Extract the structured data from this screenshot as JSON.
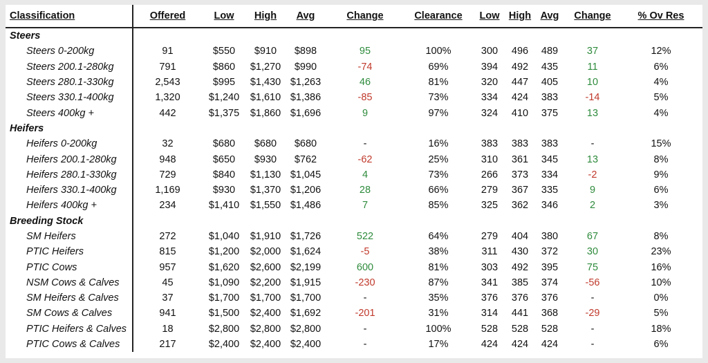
{
  "headers": {
    "classification": "Classification",
    "offered": "Offered",
    "low": "Low",
    "high": "High",
    "avg": "Avg",
    "change": "Change",
    "clearance": "Clearance",
    "low2": "Low",
    "high2": "High",
    "avg2": "Avg",
    "change2": "Change",
    "ov_res": "% Ov Res"
  },
  "colors": {
    "positive": "#2e8b3c",
    "negative": "#c0392b",
    "rule": "#222222"
  },
  "rows": [
    {
      "type": "group",
      "label": "Steers"
    },
    {
      "type": "item",
      "label": "Steers 0-200kg",
      "offered": "91",
      "low": "$550",
      "high": "$910",
      "avg": "$898",
      "change": "95",
      "clearance": "100%",
      "low2": "300",
      "high2": "496",
      "avg2": "489",
      "change2": "37",
      "ov_res": "12%"
    },
    {
      "type": "item",
      "label": "Steers 200.1-280kg",
      "offered": "791",
      "low": "$860",
      "high": "$1,270",
      "avg": "$990",
      "change": "-74",
      "clearance": "69%",
      "low2": "394",
      "high2": "492",
      "avg2": "435",
      "change2": "11",
      "ov_res": "6%"
    },
    {
      "type": "item",
      "label": "Steers 280.1-330kg",
      "offered": "2,543",
      "low": "$995",
      "high": "$1,430",
      "avg": "$1,263",
      "change": "46",
      "clearance": "81%",
      "low2": "320",
      "high2": "447",
      "avg2": "405",
      "change2": "10",
      "ov_res": "4%"
    },
    {
      "type": "item",
      "label": "Steers 330.1-400kg",
      "offered": "1,320",
      "low": "$1,240",
      "high": "$1,610",
      "avg": "$1,386",
      "change": "-85",
      "clearance": "73%",
      "low2": "334",
      "high2": "424",
      "avg2": "383",
      "change2": "-14",
      "ov_res": "5%"
    },
    {
      "type": "item",
      "label": "Steers 400kg +",
      "offered": "442",
      "low": "$1,375",
      "high": "$1,860",
      "avg": "$1,696",
      "change": "9",
      "clearance": "97%",
      "low2": "324",
      "high2": "410",
      "avg2": "375",
      "change2": "13",
      "ov_res": "4%"
    },
    {
      "type": "group",
      "label": "Heifers"
    },
    {
      "type": "item",
      "label": "Heifers 0-200kg",
      "offered": "32",
      "low": "$680",
      "high": "$680",
      "avg": "$680",
      "change": "-",
      "clearance": "16%",
      "low2": "383",
      "high2": "383",
      "avg2": "383",
      "change2": "-",
      "ov_res": "15%"
    },
    {
      "type": "item",
      "label": "Heifers 200.1-280kg",
      "offered": "948",
      "low": "$650",
      "high": "$930",
      "avg": "$762",
      "change": "-62",
      "clearance": "25%",
      "low2": "310",
      "high2": "361",
      "avg2": "345",
      "change2": "13",
      "ov_res": "8%"
    },
    {
      "type": "item",
      "label": "Heifers 280.1-330kg",
      "offered": "729",
      "low": "$840",
      "high": "$1,130",
      "avg": "$1,045",
      "change": "4",
      "clearance": "73%",
      "low2": "266",
      "high2": "373",
      "avg2": "334",
      "change2": "-2",
      "ov_res": "9%"
    },
    {
      "type": "item",
      "label": "Heifers 330.1-400kg",
      "offered": "1,169",
      "low": "$930",
      "high": "$1,370",
      "avg": "$1,206",
      "change": "28",
      "clearance": "66%",
      "low2": "279",
      "high2": "367",
      "avg2": "335",
      "change2": "9",
      "ov_res": "6%"
    },
    {
      "type": "item",
      "label": "Heifers 400kg +",
      "offered": "234",
      "low": "$1,410",
      "high": "$1,550",
      "avg": "$1,486",
      "change": "7",
      "clearance": "85%",
      "low2": "325",
      "high2": "362",
      "avg2": "346",
      "change2": "2",
      "ov_res": "3%"
    },
    {
      "type": "group",
      "label": "Breeding Stock"
    },
    {
      "type": "item",
      "label": "SM Heifers",
      "offered": "272",
      "low": "$1,040",
      "high": "$1,910",
      "avg": "$1,726",
      "change": "522",
      "clearance": "64%",
      "low2": "279",
      "high2": "404",
      "avg2": "380",
      "change2": "67",
      "ov_res": "8%"
    },
    {
      "type": "item",
      "label": "PTIC Heifers",
      "offered": "815",
      "low": "$1,200",
      "high": "$2,000",
      "avg": "$1,624",
      "change": "-5",
      "clearance": "38%",
      "low2": "311",
      "high2": "430",
      "avg2": "372",
      "change2": "30",
      "ov_res": "23%"
    },
    {
      "type": "item",
      "label": "PTIC Cows",
      "offered": "957",
      "low": "$1,620",
      "high": "$2,600",
      "avg": "$2,199",
      "change": "600",
      "clearance": "81%",
      "low2": "303",
      "high2": "492",
      "avg2": "395",
      "change2": "75",
      "ov_res": "16%"
    },
    {
      "type": "item",
      "label": "NSM Cows & Calves",
      "offered": "45",
      "low": "$1,090",
      "high": "$2,200",
      "avg": "$1,915",
      "change": "-230",
      "clearance": "87%",
      "low2": "341",
      "high2": "385",
      "avg2": "374",
      "change2": "-56",
      "ov_res": "10%"
    },
    {
      "type": "item",
      "label": "SM Heifers & Calves",
      "offered": "37",
      "low": "$1,700",
      "high": "$1,700",
      "avg": "$1,700",
      "change": "-",
      "clearance": "35%",
      "low2": "376",
      "high2": "376",
      "avg2": "376",
      "change2": "-",
      "ov_res": "0%"
    },
    {
      "type": "item",
      "label": "SM Cows & Calves",
      "offered": "941",
      "low": "$1,500",
      "high": "$2,400",
      "avg": "$1,692",
      "change": "-201",
      "clearance": "31%",
      "low2": "314",
      "high2": "441",
      "avg2": "368",
      "change2": "-29",
      "ov_res": "5%"
    },
    {
      "type": "item",
      "label": "PTIC Heifers & Calves",
      "offered": "18",
      "low": "$2,800",
      "high": "$2,800",
      "avg": "$2,800",
      "change": "-",
      "clearance": "100%",
      "low2": "528",
      "high2": "528",
      "avg2": "528",
      "change2": "-",
      "ov_res": "18%"
    },
    {
      "type": "item",
      "label": "PTIC Cows & Calves",
      "offered": "217",
      "low": "$2,400",
      "high": "$2,400",
      "avg": "$2,400",
      "change": "-",
      "clearance": "17%",
      "low2": "424",
      "high2": "424",
      "avg2": "424",
      "change2": "-",
      "ov_res": "6%"
    }
  ]
}
